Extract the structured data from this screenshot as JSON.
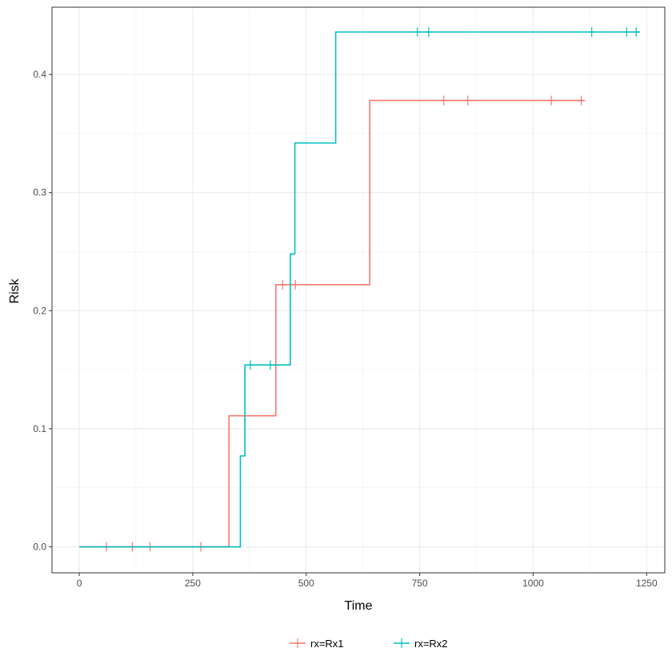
{
  "chart_data": {
    "type": "line",
    "title": "",
    "xlabel": "Time",
    "ylabel": "Risk",
    "xlim": [
      -60,
      1290
    ],
    "ylim": [
      -0.022,
      0.457
    ],
    "xticks": [
      0,
      250,
      500,
      750,
      1000,
      1250
    ],
    "xtick_labels": [
      "0",
      "250",
      "500",
      "750",
      "1000",
      "1250"
    ],
    "yticks": [
      0.0,
      0.1,
      0.2,
      0.3,
      0.4
    ],
    "ytick_labels": [
      "0.0",
      "0.1",
      "0.2",
      "0.3",
      "0.4"
    ],
    "grid": true,
    "legend_position": "bottom",
    "series": [
      {
        "name": "rx=Rx1",
        "color": "#F8766D",
        "step": [
          [
            0,
            0.0
          ],
          [
            330,
            0.0
          ],
          [
            330,
            0.111
          ],
          [
            433,
            0.111
          ],
          [
            433,
            0.222
          ],
          [
            640,
            0.222
          ],
          [
            640,
            0.378
          ],
          [
            1112,
            0.378
          ]
        ],
        "censor_times": [
          60,
          117,
          156,
          268,
          448,
          476,
          803,
          856,
          1040,
          1106
        ],
        "censor_values": [
          0.0,
          0.0,
          0.0,
          0.0,
          0.222,
          0.222,
          0.378,
          0.378,
          0.378,
          0.378
        ]
      },
      {
        "name": "rx=Rx2",
        "color": "#00BFC4",
        "step": [
          [
            0,
            0.0
          ],
          [
            355,
            0.0
          ],
          [
            355,
            0.077
          ],
          [
            365,
            0.077
          ],
          [
            365,
            0.154
          ],
          [
            465,
            0.154
          ],
          [
            465,
            0.248
          ],
          [
            475,
            0.248
          ],
          [
            475,
            0.342
          ],
          [
            565,
            0.342
          ],
          [
            565,
            0.436
          ],
          [
            1235,
            0.436
          ]
        ],
        "censor_times": [
          377,
          421,
          745,
          770,
          1129,
          1206,
          1227
        ],
        "censor_values": [
          0.154,
          0.154,
          0.436,
          0.436,
          0.436,
          0.436,
          0.436
        ]
      }
    ]
  }
}
